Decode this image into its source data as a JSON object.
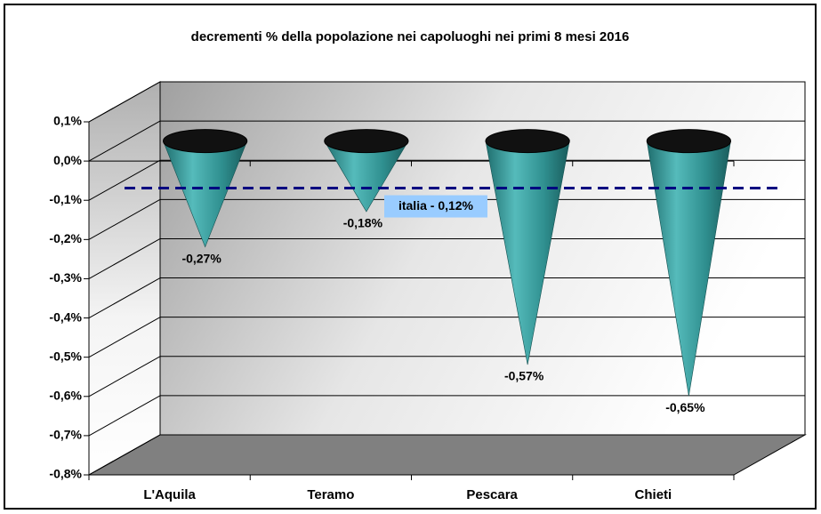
{
  "chart_data": {
    "type": "cone",
    "title": "decrementi % della popolazione nei capoluoghi nei primi 8 mesi 2016",
    "categories": [
      "L'Aquila",
      "Teramo",
      "Pescara",
      "Chieti"
    ],
    "values": [
      -0.27,
      -0.18,
      -0.57,
      -0.65
    ],
    "value_labels": [
      "-0,27%",
      "-0,18%",
      "-0,57%",
      "-0,65%"
    ],
    "color": "#339999",
    "ylim": [
      -0.8,
      0.1
    ],
    "yticks": [
      {
        "value": 0.1,
        "label": "0,1%"
      },
      {
        "value": 0.0,
        "label": "0,0%"
      },
      {
        "value": -0.1,
        "label": "-0,1%"
      },
      {
        "value": -0.2,
        "label": "-0,2%"
      },
      {
        "value": -0.3,
        "label": "-0,3%"
      },
      {
        "value": -0.4,
        "label": "-0,4%"
      },
      {
        "value": -0.5,
        "label": "-0,5%"
      },
      {
        "value": -0.6,
        "label": "-0,6%"
      },
      {
        "value": -0.7,
        "label": "-0,7%"
      },
      {
        "value": -0.8,
        "label": "-0,8%"
      }
    ],
    "grid": true,
    "reference_line": {
      "value": -0.12,
      "label": "italia - 0,12%",
      "color": "#000080"
    }
  }
}
